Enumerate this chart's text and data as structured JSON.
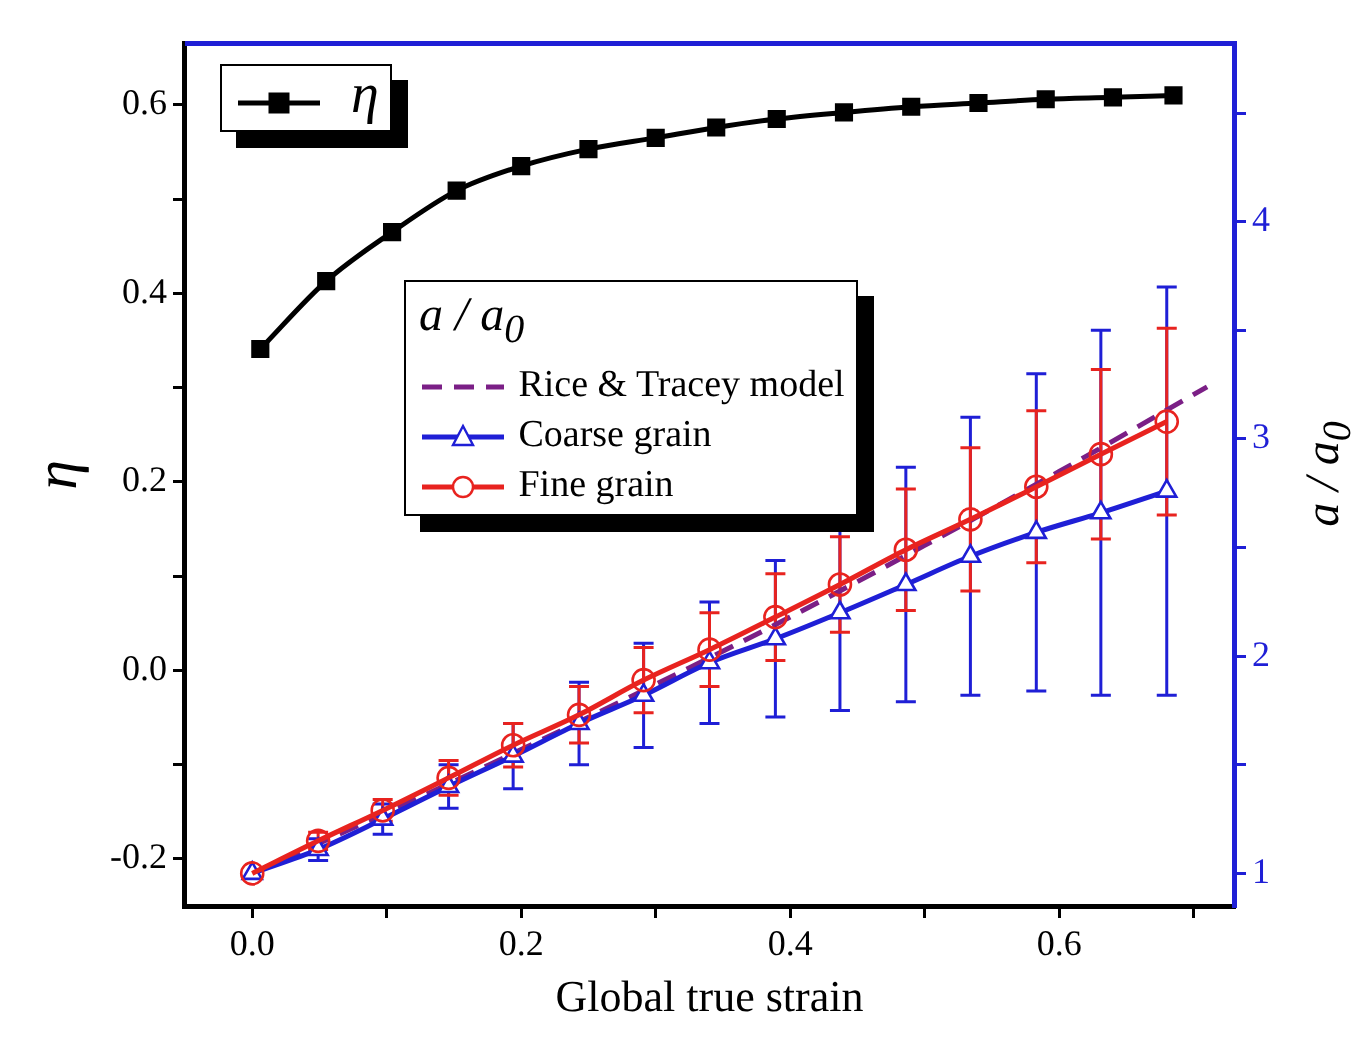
{
  "chart_data": {
    "type": "line",
    "xlabel": "Global true strain",
    "ylabel": "η",
    "y2label": "a / a$_{0}$",
    "legend_title": "a / a$_{0}$",
    "legend": "top left",
    "grid": false,
    "xlim": [
      -0.05,
      0.73
    ],
    "xticks": [
      {
        "value": 0,
        "label": "0.0"
      },
      {
        "value": 0.1,
        "label": null
      },
      {
        "value": 0.2,
        "label": "0.2"
      },
      {
        "value": 0.3,
        "label": null
      },
      {
        "value": 0.4,
        "label": "0.4"
      },
      {
        "value": 0.5,
        "label": null
      },
      {
        "value": 0.6,
        "label": "0.6"
      },
      {
        "value": 0.7,
        "label": null
      }
    ],
    "ylim": [
      -0.25,
      0.665
    ],
    "yticks": [
      {
        "value": -0.2,
        "label": "-0.2"
      },
      {
        "value": -0.1,
        "label": null
      },
      {
        "value": 0,
        "label": "0.0"
      },
      {
        "value": 0.1,
        "label": null
      },
      {
        "value": 0.2,
        "label": "0.2"
      },
      {
        "value": 0.3,
        "label": null
      },
      {
        "value": 0.4,
        "label": "0.4"
      },
      {
        "value": 0.5,
        "label": null
      },
      {
        "value": 0.6,
        "label": "0.6"
      }
    ],
    "y2lim": [
      0.85,
      4.82
    ],
    "y2ticks": [
      1,
      {
        "value": 1.5,
        "label": null
      },
      2,
      {
        "value": 2.5,
        "label": null
      },
      3,
      {
        "value": 3.5,
        "label": null
      },
      4,
      {
        "value": 4.5,
        "label": null
      }
    ],
    "series": [
      {
        "name": "η",
        "color": "#000000",
        "marker": "square",
        "line_style": "solid",
        "x": [
          0.006,
          0.055,
          0.104,
          0.152,
          0.2,
          0.25,
          0.3,
          0.345,
          0.39,
          0.44,
          0.49,
          0.54,
          0.59,
          0.64,
          0.685
        ],
        "values": [
          0.341,
          0.413,
          0.465,
          0.509,
          0.535,
          0.553,
          0.565,
          0.576,
          0.585,
          0.592,
          0.598,
          0.602,
          0.606,
          0.608,
          0.61
        ]
      },
      {
        "name": "Rice & Tracey model",
        "color": "#7b1f86",
        "marker": "none",
        "line_style": "dashed",
        "axis": "y2",
        "x": [
          0,
          0.1,
          0.2,
          0.3,
          0.4,
          0.5,
          0.6,
          0.71
        ],
        "values": [
          1,
          1.28,
          1.57,
          1.87,
          2.18,
          2.51,
          2.85,
          3.24
        ]
      },
      {
        "name": "Coarse grain",
        "color": "#1f1fd6",
        "marker": "triangle",
        "line_style": "solid",
        "axis": "y2",
        "x": [
          0,
          0.049,
          0.097,
          0.146,
          0.194,
          0.243,
          0.291,
          0.34,
          0.389,
          0.437,
          0.486,
          0.534,
          0.583,
          0.631,
          0.68
        ],
        "values": [
          1,
          1.11,
          1.25,
          1.4,
          1.54,
          1.69,
          1.82,
          1.97,
          2.08,
          2.2,
          2.33,
          2.46,
          2.57,
          2.66,
          2.76
        ],
        "errors": [
          null,
          0.05,
          0.07,
          0.1,
          0.15,
          0.19,
          0.24,
          0.28,
          0.36,
          0.45,
          0.54,
          0.64,
          0.73,
          0.84,
          0.94
        ]
      },
      {
        "name": "Fine grain",
        "color": "#e8231f",
        "marker": "circle",
        "line_style": "solid",
        "axis": "y2",
        "x": [
          0,
          0.049,
          0.097,
          0.146,
          0.194,
          0.243,
          0.291,
          0.34,
          0.389,
          0.437,
          0.486,
          0.534,
          0.583,
          0.631,
          0.68
        ],
        "values": [
          1,
          1.15,
          1.29,
          1.44,
          1.59,
          1.73,
          1.89,
          2.03,
          2.18,
          2.33,
          2.49,
          2.63,
          2.78,
          2.93,
          3.08
        ],
        "errors": [
          null,
          0.04,
          0.05,
          0.08,
          0.1,
          0.13,
          0.15,
          0.17,
          0.2,
          0.22,
          0.28,
          0.33,
          0.35,
          0.39,
          0.43
        ]
      }
    ]
  }
}
